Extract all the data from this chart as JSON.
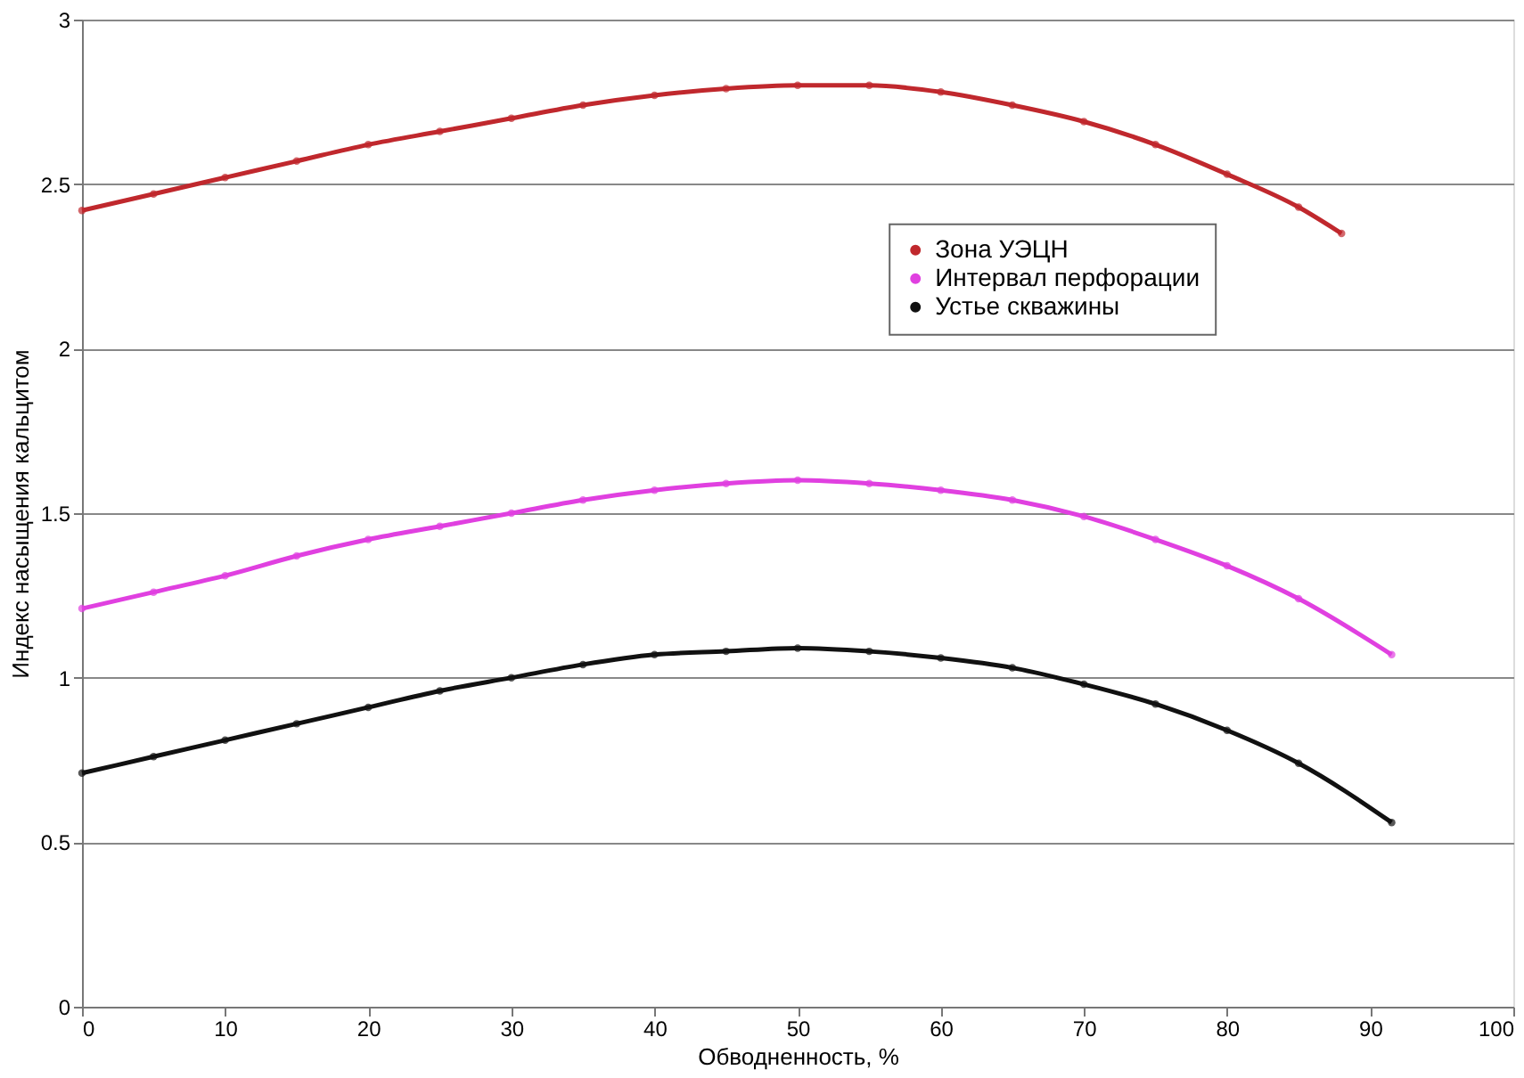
{
  "chart_data": {
    "type": "line",
    "xlabel": "Обводненность, %",
    "ylabel": "Индекс насыщения кальцитом",
    "x": [
      0,
      5,
      10,
      15,
      20,
      25,
      30,
      35,
      40,
      45,
      50,
      55,
      60,
      65,
      70,
      75,
      80,
      85,
      91.5
    ],
    "series": [
      {
        "name": "Зона УЭЦН",
        "color": "#c0282d",
        "x": [
          0,
          5,
          10,
          15,
          20,
          25,
          30,
          35,
          40,
          45,
          50,
          55,
          60,
          65,
          70,
          75,
          80,
          85,
          88
        ],
        "values": [
          2.42,
          2.47,
          2.52,
          2.57,
          2.62,
          2.66,
          2.7,
          2.74,
          2.77,
          2.79,
          2.8,
          2.8,
          2.78,
          2.74,
          2.69,
          2.62,
          2.53,
          2.43,
          2.35
        ]
      },
      {
        "name": "Интервал перфорации",
        "color": "#e040e0",
        "values": [
          1.21,
          1.26,
          1.31,
          1.37,
          1.42,
          1.46,
          1.5,
          1.54,
          1.57,
          1.59,
          1.6,
          1.59,
          1.57,
          1.54,
          1.49,
          1.42,
          1.34,
          1.24,
          1.07
        ]
      },
      {
        "name": "Устье скважины",
        "color": "#111111",
        "values": [
          0.71,
          0.76,
          0.81,
          0.86,
          0.91,
          0.96,
          1.0,
          1.04,
          1.07,
          1.08,
          1.09,
          1.08,
          1.06,
          1.03,
          0.98,
          0.92,
          0.84,
          0.74,
          0.56
        ]
      }
    ],
    "xlim": [
      0,
      100
    ],
    "xticks": [
      0,
      10,
      20,
      30,
      40,
      50,
      60,
      70,
      80,
      90,
      100
    ],
    "ylim": [
      0,
      3
    ],
    "yticks": [
      0,
      0.5,
      1,
      1.5,
      2,
      2.5,
      3
    ],
    "grid": "y",
    "legend": "right",
    "marker": "circle",
    "line_style": "solid"
  }
}
